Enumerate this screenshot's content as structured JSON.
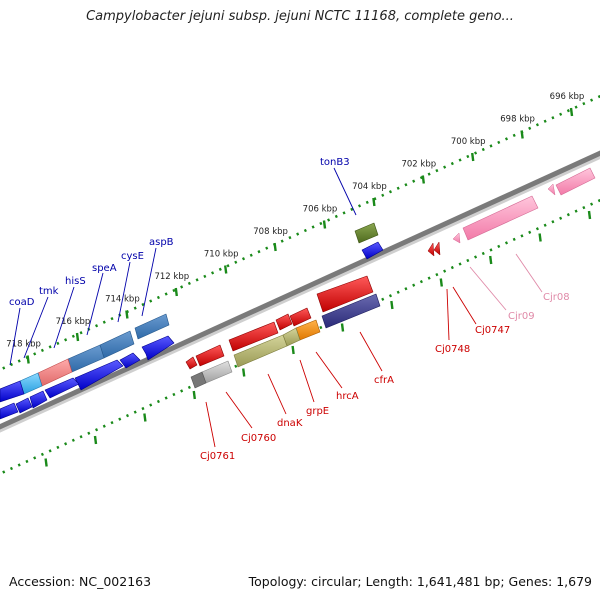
{
  "title": "Campylobacter jejuni subsp. jejuni NCTC 11168, complete geno...",
  "footer": {
    "accession": "Accession: NC_002163",
    "topology": "Topology: circular; Length: 1,641,481 bp; Genes: 1,679"
  },
  "colors": {
    "forward_label": "#0000aa",
    "reverse_label": "#cc0000",
    "rna_label": "#e08aa8",
    "tick": "#1a8a1a",
    "backbone": "#777777"
  },
  "ruler": {
    "labels": [
      "696 kbp",
      "698 kbp",
      "700 kbp",
      "702 kbp",
      "704 kbp",
      "706 kbp",
      "708 kbp",
      "710 kbp",
      "712 kbp",
      "714 kbp",
      "716 kbp",
      "718 kbp"
    ]
  },
  "gene_labels": {
    "forward": [
      "tonB3",
      "aspB",
      "cysE",
      "speA",
      "hisS",
      "tmk",
      "coaD"
    ],
    "reverse": [
      "cfrA",
      "hrcA",
      "grpE",
      "dnaK",
      "Cj0760",
      "Cj0761",
      "Cj0748",
      "Cj0747"
    ],
    "rna": [
      "Cjr09",
      "Cjr08"
    ]
  }
}
